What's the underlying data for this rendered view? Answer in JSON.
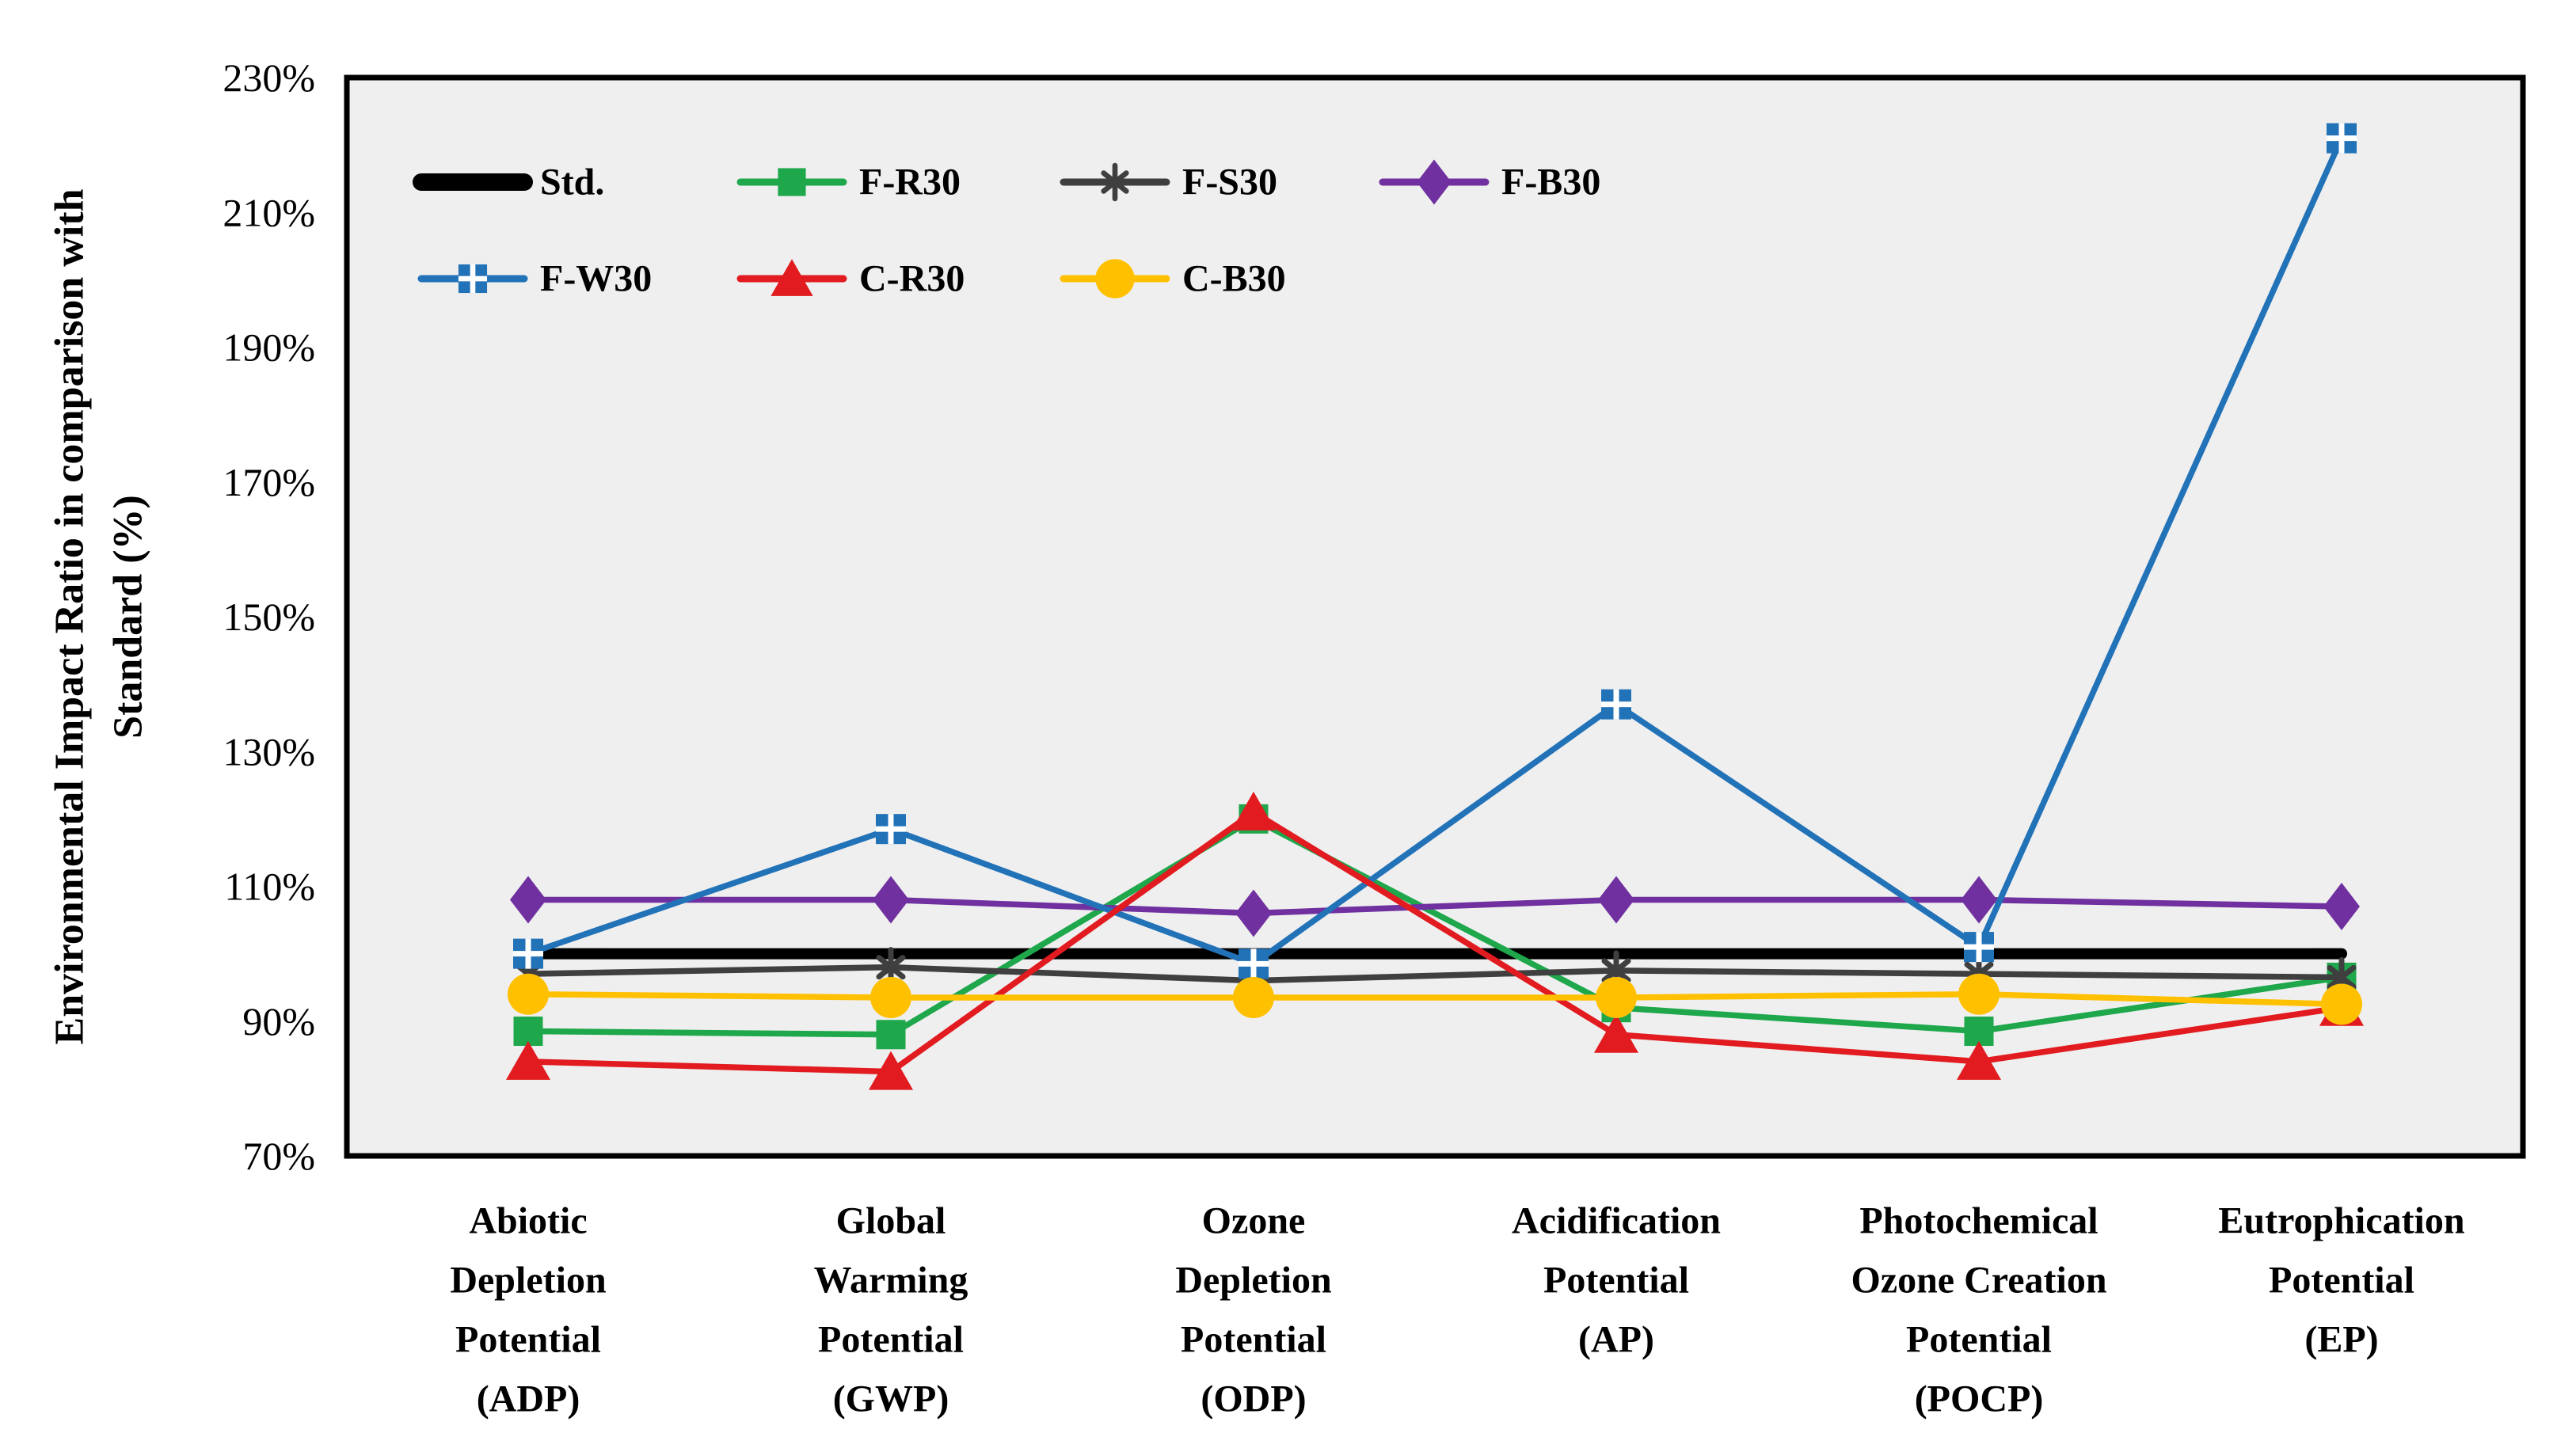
{
  "chart_data": {
    "type": "line",
    "title": "",
    "ylabel_lines": [
      "Environmental Impact Ratio in comparison with",
      "Standard (%)"
    ],
    "xlabel": "",
    "ylim": [
      70,
      230
    ],
    "y_ticks": [
      230,
      210,
      190,
      170,
      150,
      130,
      110,
      90,
      70
    ],
    "y_tick_suffix": "%",
    "grid": false,
    "plot_background": "#efefef",
    "plot_border_color": "#000000",
    "legend_position": "top-left-inside-two-rows",
    "categories": [
      {
        "id": "ADP",
        "label_lines": [
          "Abiotic",
          "Depletion",
          "Potential",
          "(ADP)"
        ]
      },
      {
        "id": "GWP",
        "label_lines": [
          "Global",
          "Warming",
          "Potential",
          "(GWP)"
        ]
      },
      {
        "id": "ODP",
        "label_lines": [
          "Ozone",
          "Depletion",
          "Potential",
          "(ODP)"
        ]
      },
      {
        "id": "AP",
        "label_lines": [
          "Acidification",
          "Potential",
          "(AP)"
        ]
      },
      {
        "id": "POCP",
        "label_lines": [
          "Photochemical",
          "Ozone Creation",
          "Potential",
          "(POCP)"
        ]
      },
      {
        "id": "EP",
        "label_lines": [
          "Eutrophication",
          "Potential",
          "(EP)"
        ]
      }
    ],
    "series": [
      {
        "name": "Std.",
        "color": "#000000",
        "marker": "none",
        "thick": true,
        "legend_row": 0,
        "legend_col": 0,
        "values": [
          100,
          100,
          100,
          100,
          100,
          100
        ]
      },
      {
        "name": "F-R30",
        "color": "#1EA74B",
        "marker": "square",
        "thick": false,
        "legend_row": 0,
        "legend_col": 1,
        "values": [
          88.5,
          88,
          120,
          92,
          88.5,
          96.5
        ]
      },
      {
        "name": "F-S30",
        "color": "#3F3F3F",
        "marker": "asterisk",
        "thick": false,
        "legend_row": 0,
        "legend_col": 2,
        "values": [
          97,
          98,
          96,
          97.5,
          97,
          96.5
        ]
      },
      {
        "name": "F-B30",
        "color": "#7030A0",
        "marker": "diamond",
        "thick": false,
        "legend_row": 0,
        "legend_col": 3,
        "values": [
          108,
          108,
          106,
          108,
          108,
          107
        ]
      },
      {
        "name": "F-W30",
        "color": "#2272B8",
        "marker": "checker",
        "thick": false,
        "legend_row": 1,
        "legend_col": 0,
        "values": [
          100,
          118.5,
          98.5,
          137,
          101,
          221
        ]
      },
      {
        "name": "C-R30",
        "color": "#E11B1F",
        "marker": "triangle",
        "thick": false,
        "legend_row": 1,
        "legend_col": 1,
        "values": [
          84,
          82.5,
          121,
          88,
          84,
          92
        ]
      },
      {
        "name": "C-B30",
        "color": "#FFC000",
        "marker": "circle",
        "thick": false,
        "legend_row": 1,
        "legend_col": 2,
        "values": [
          94,
          93.5,
          93.5,
          93.5,
          94,
          92.5
        ]
      }
    ]
  }
}
